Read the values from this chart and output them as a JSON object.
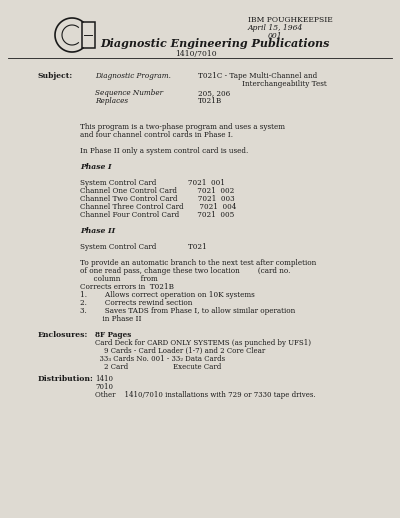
{
  "bg_color": "#dedad2",
  "text_color": "#1a1a1a",
  "title_line1": "IBM POUGHKEEPSIE",
  "title_line2": "April 15, 1964",
  "title_line3": "001",
  "header_title": "Diagnostic Engineering Publications",
  "header_sub": "1410/7010",
  "subject_label": "Subject:",
  "subject_col1_line1": "Diagnostic Program.",
  "subject_col2_line1": "T021C - Tape Multi-Channel and",
  "subject_col2_line2": "Interchangeability Test",
  "subject_col1_line3": "Sequence Number",
  "subject_col2_line3": "205, 206",
  "subject_col1_line4": "Replaces",
  "subject_col2_line4": "T021B",
  "body_lines": [
    "",
    "This program is a two-phase program and uses a system",
    "and four channel control cards in Phase I.",
    "",
    "In Phase II only a system control card is used.",
    "",
    "Phase I",
    "",
    "System Control Card              7021  001",
    "Channel One Control Card         7021  002",
    "Channel Two Control Card         7021  003",
    "Channel Three Control Card       7021  004",
    "Channel Four Control Card        7021  005",
    "",
    "Phase II",
    "",
    "System Control Card              T021",
    "",
    "To provide an automatic branch to the next test after completion",
    "of one read pass, change these two location        (card no.",
    "      column         from",
    "Corrects errors in  T021B",
    "1.        Allows correct operation on 10K systems",
    "2.        Corrects rewind section",
    "3.        Saves TADS from Phase I, to allow similar operation",
    "          in Phase II"
  ],
  "enclosures_label": "Enclosures:",
  "enclosures_val": "8F Pages",
  "enclosures_lines": [
    "Card Deck for CARD ONLY SYSTEMS (as punched by UFS1)",
    "    9 Cards - Card Loader (1-7) and 2 Core Clear",
    "  33₃ Cards No. 001 - 33₂ Data Cards",
    "    2 Card                    Execute Card"
  ],
  "distribution_label": "Distribution:",
  "distribution_lines": [
    "1410",
    "7010",
    "Other    1410/7010 installations with 729 or 7330 tape drives."
  ]
}
